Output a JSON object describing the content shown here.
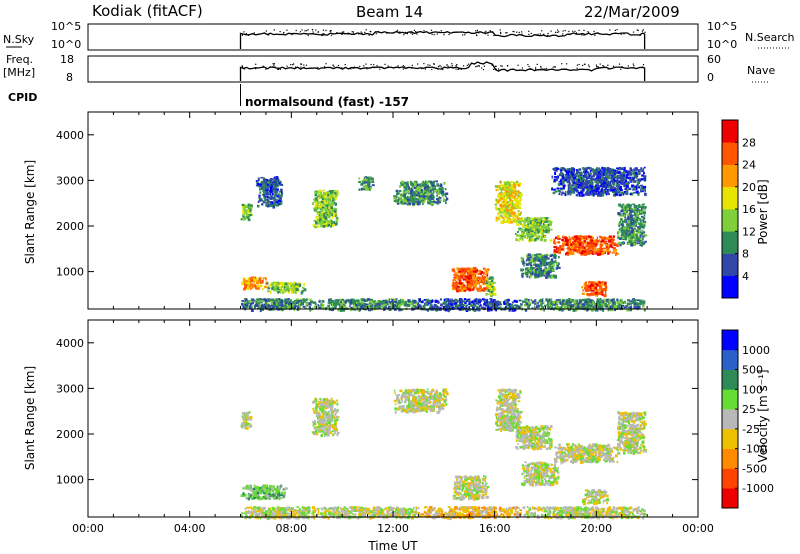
{
  "header": {
    "station": "Kodiak (fitACF)",
    "beam": "Beam 14",
    "date": "22/Mar/2009"
  },
  "status_panels": {
    "noise": {
      "left_label": "N.Sky",
      "right_label": "N.Search",
      "left_ticks": [
        "10^5",
        "10^0"
      ],
      "right_ticks": [
        "10^5",
        "10^0"
      ]
    },
    "freq": {
      "left_label_line1": "Freq.",
      "left_label_line2": "[MHz]",
      "right_label": "Nave",
      "left_ticks": [
        "18",
        "8"
      ],
      "right_ticks": [
        "60",
        "0"
      ]
    },
    "cpid": {
      "label": "CPID",
      "text": "normalsound (fast) -157",
      "start": 6.0
    }
  },
  "colors": {
    "power_scale": [
      "#0000ff",
      "#3046a8",
      "#2e8b57",
      "#7fcf3a",
      "#e8e400",
      "#ff9900",
      "#ff5500",
      "#ee0000"
    ],
    "velocity_scale": [
      "#0000ff",
      "#2a60c8",
      "#2e8b57",
      "#66dd33",
      "#b8b8b8",
      "#eec000",
      "#ff8c00",
      "#ff4400",
      "#ee0000"
    ]
  },
  "chart_data": [
    {
      "type": "heatmap",
      "panel": "power",
      "ylabel": "Slant Range [km]",
      "xlim": [
        0,
        24
      ],
      "ylim": [
        180,
        4500
      ],
      "yticks": [
        "1000",
        "2000",
        "3000",
        "4000"
      ],
      "colorbar_label": "Power [dB]",
      "colorbar_ticks": [
        "4",
        "8",
        "12",
        "16",
        "20",
        "24",
        "28"
      ],
      "data_extent": [
        6.0,
        21.9
      ],
      "regions": [
        {
          "x": [
            6.0,
            9.0
          ],
          "y": [
            180,
            420
          ],
          "level": 2
        },
        {
          "x": [
            9.0,
            13.0
          ],
          "y": [
            180,
            420
          ],
          "level": 2
        },
        {
          "x": [
            13.0,
            17.0
          ],
          "y": [
            180,
            420
          ],
          "level": 1
        },
        {
          "x": [
            17.0,
            21.9
          ],
          "y": [
            180,
            420
          ],
          "level": 2
        },
        {
          "x": [
            6.0,
            6.4
          ],
          "y": [
            2150,
            2500
          ],
          "level": 3
        },
        {
          "x": [
            6.0,
            7.0
          ],
          "y": [
            640,
            900
          ],
          "level": 5
        },
        {
          "x": [
            7.0,
            8.5
          ],
          "y": [
            560,
            780
          ],
          "level": 3
        },
        {
          "x": [
            6.6,
            7.6
          ],
          "y": [
            2450,
            3100
          ],
          "level": 1
        },
        {
          "x": [
            8.8,
            9.8
          ],
          "y": [
            2000,
            2800
          ],
          "level": 3
        },
        {
          "x": [
            10.6,
            11.2
          ],
          "y": [
            2800,
            3100
          ],
          "level": 2
        },
        {
          "x": [
            12.0,
            14.1
          ],
          "y": [
            2500,
            3000
          ],
          "level": 2
        },
        {
          "x": [
            14.3,
            15.7
          ],
          "y": [
            600,
            1100
          ],
          "level": 6
        },
        {
          "x": [
            15.6,
            16.0
          ],
          "y": [
            500,
            900
          ],
          "level": 3
        },
        {
          "x": [
            16.0,
            17.0
          ],
          "y": [
            2100,
            3000
          ],
          "level": 4
        },
        {
          "x": [
            16.8,
            18.2
          ],
          "y": [
            1700,
            2200
          ],
          "level": 3
        },
        {
          "x": [
            18.3,
            20.8
          ],
          "y": [
            1400,
            1800
          ],
          "level": 6
        },
        {
          "x": [
            20.8,
            21.9
          ],
          "y": [
            1600,
            2500
          ],
          "level": 2
        },
        {
          "x": [
            17.0,
            18.5
          ],
          "y": [
            900,
            1400
          ],
          "level": 2
        },
        {
          "x": [
            19.4,
            20.4
          ],
          "y": [
            500,
            800
          ],
          "level": 6
        },
        {
          "x": [
            18.2,
            21.9
          ],
          "y": [
            2700,
            3300
          ],
          "level": 1
        }
      ]
    },
    {
      "type": "heatmap",
      "panel": "velocity",
      "ylabel": "Slant Range [km]",
      "xlabel": "Time UT",
      "xlim": [
        0,
        24
      ],
      "ylim": [
        180,
        4500
      ],
      "xticks": [
        "00:00",
        "04:00",
        "08:00",
        "12:00",
        "16:00",
        "20:00",
        "00:00"
      ],
      "yticks": [
        "1000",
        "2000",
        "3000",
        "4000"
      ],
      "colorbar_label": "Velocity [m s⁻¹]",
      "colorbar_ticks": [
        "1000",
        "500",
        "100",
        "25",
        "-25",
        "-100",
        "-500",
        "-1000"
      ],
      "data_extent": [
        6.0,
        21.9
      ],
      "regions": [
        {
          "x": [
            6.0,
            7.8
          ],
          "y": [
            600,
            900
          ],
          "level": 3
        },
        {
          "x": [
            6.0,
            9.0
          ],
          "y": [
            180,
            420
          ],
          "level": 4
        },
        {
          "x": [
            9.0,
            13.0
          ],
          "y": [
            180,
            420
          ],
          "level": 4
        },
        {
          "x": [
            13.0,
            17.0
          ],
          "y": [
            180,
            420
          ],
          "level": 5
        },
        {
          "x": [
            17.0,
            21.9
          ],
          "y": [
            180,
            420
          ],
          "level": 4
        },
        {
          "x": [
            6.0,
            6.4
          ],
          "y": [
            2150,
            2500
          ],
          "level": 4
        },
        {
          "x": [
            8.8,
            9.8
          ],
          "y": [
            2000,
            2800
          ],
          "level": 4
        },
        {
          "x": [
            12.0,
            14.1
          ],
          "y": [
            2500,
            3000
          ],
          "level": 4
        },
        {
          "x": [
            14.3,
            15.7
          ],
          "y": [
            600,
            1100
          ],
          "level": 4
        },
        {
          "x": [
            16.0,
            17.0
          ],
          "y": [
            2100,
            3000
          ],
          "level": 4
        },
        {
          "x": [
            16.8,
            18.2
          ],
          "y": [
            1700,
            2200
          ],
          "level": 4
        },
        {
          "x": [
            18.3,
            20.8
          ],
          "y": [
            1400,
            1800
          ],
          "level": 4
        },
        {
          "x": [
            20.8,
            21.9
          ],
          "y": [
            1600,
            2500
          ],
          "level": 4
        },
        {
          "x": [
            17.0,
            18.5
          ],
          "y": [
            900,
            1400
          ],
          "level": 4
        },
        {
          "x": [
            19.4,
            20.4
          ],
          "y": [
            500,
            800
          ],
          "level": 4
        }
      ]
    }
  ]
}
